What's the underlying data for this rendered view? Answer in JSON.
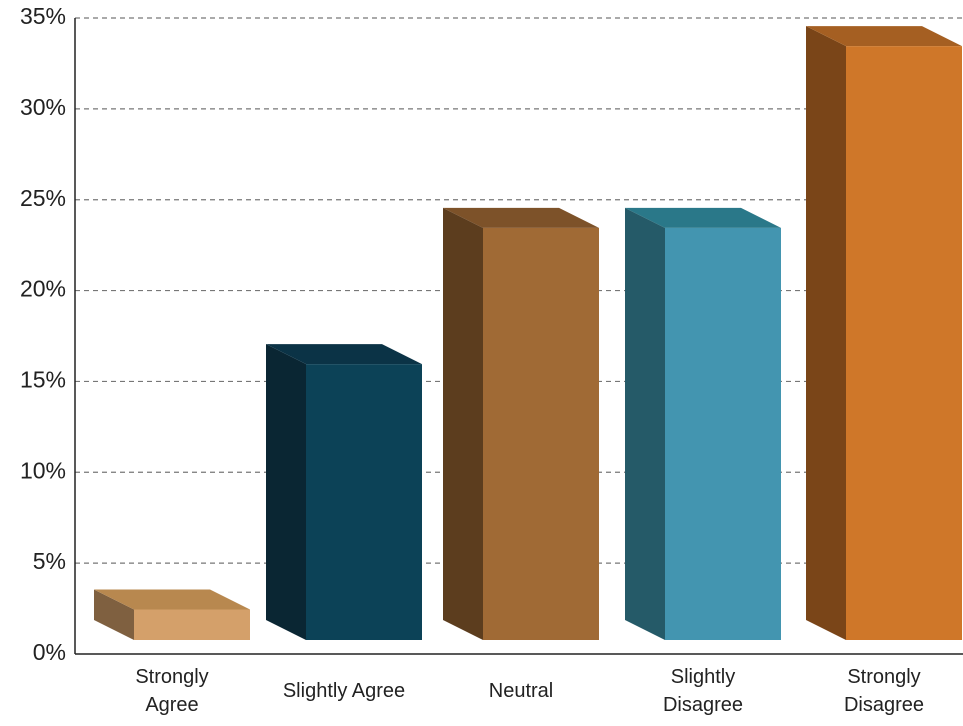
{
  "chart_data": {
    "type": "bar3d",
    "categories": [
      "Strongly Agree",
      "Slightly Agree",
      "Neutral",
      "Slightly Disagree",
      "Strongly Disagree"
    ],
    "values": [
      3,
      16.5,
      24,
      24,
      34
    ],
    "colors": [
      "#d4a06a",
      "#0c4257",
      "#a06a35",
      "#4395b0",
      "#cf7729"
    ],
    "side_colors": [
      "#7f6040",
      "#0a2633",
      "#5c3d1e",
      "#255a68",
      "#7a4518"
    ],
    "top_colors": [
      "#b8884f",
      "#0b3346",
      "#7d5229",
      "#2a7889",
      "#a55f22"
    ],
    "ylim": [
      0,
      35
    ],
    "yticks": [
      {
        "value": 0,
        "label": "0%"
      },
      {
        "value": 5,
        "label": "5%"
      },
      {
        "value": 10,
        "label": "10%"
      },
      {
        "value": 15,
        "label": "15%"
      },
      {
        "value": 20,
        "label": "20%"
      },
      {
        "value": 25,
        "label": "25%"
      },
      {
        "value": 30,
        "label": "30%"
      },
      {
        "value": 35,
        "label": "35%"
      }
    ],
    "grid": true
  }
}
